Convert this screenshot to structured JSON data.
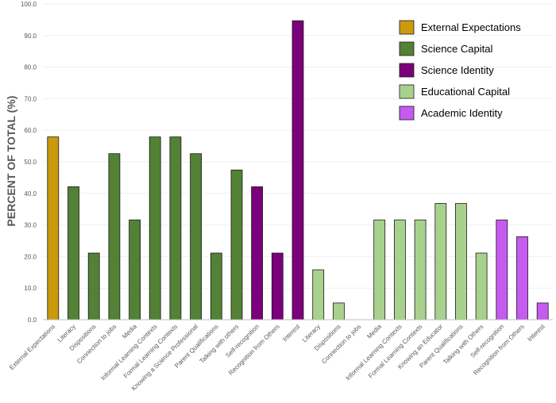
{
  "chart_data": {
    "type": "bar",
    "title": "",
    "xlabel": "",
    "ylabel": "PERCENT OF TOTAL (%)",
    "ylim": [
      0,
      100
    ],
    "yticks": [
      "0.0",
      "10.0",
      "20.0",
      "30.0",
      "40.0",
      "50.0",
      "60.0",
      "70.0",
      "80.0",
      "90.0",
      "100.0"
    ],
    "grid": true,
    "legend_position": "top-right",
    "legend": [
      {
        "name": "External Expectations",
        "color": "#c99a0e"
      },
      {
        "name": "Science Capital",
        "color": "#538135"
      },
      {
        "name": "Science Identity",
        "color": "#7b007b"
      },
      {
        "name": "Educational Capital",
        "color": "#a9d18e"
      },
      {
        "name": "Academic Identity",
        "color": "#c65bf0"
      }
    ],
    "bars": [
      {
        "category": "External Expectations",
        "series": "External Expectations",
        "value": 57.9
      },
      {
        "category": "Literacy",
        "series": "Science Capital",
        "value": 42.1
      },
      {
        "category": "Dispositions",
        "series": "Science Capital",
        "value": 21.1
      },
      {
        "category": "Connection to jobs",
        "series": "Science Capital",
        "value": 52.6
      },
      {
        "category": "Media",
        "series": "Science Capital",
        "value": 31.6
      },
      {
        "category": "Informal Learning Contexts",
        "series": "Science Capital",
        "value": 57.9
      },
      {
        "category": "Formal Learning Contexts",
        "series": "Science Capital",
        "value": 57.9
      },
      {
        "category": "Knowing a Science Professional",
        "series": "Science Capital",
        "value": 52.6
      },
      {
        "category": "Parent Qualifications",
        "series": "Science Capital",
        "value": 21.1
      },
      {
        "category": "Talking with others",
        "series": "Science Capital",
        "value": 47.4
      },
      {
        "category": "Self-recognition",
        "series": "Science Identity",
        "value": 42.1
      },
      {
        "category": "Recognition from Others",
        "series": "Science Identity",
        "value": 21.1
      },
      {
        "category": "Interest",
        "series": "Science Identity",
        "value": 94.7
      },
      {
        "category": "Literacy",
        "series": "Educational Capital",
        "value": 15.8
      },
      {
        "category": "Dispositions",
        "series": "Educational Capital",
        "value": 5.3
      },
      {
        "category": "Connection to jobs",
        "series": "Educational Capital",
        "value": 0
      },
      {
        "category": "Media",
        "series": "Educational Capital",
        "value": 31.6
      },
      {
        "category": "Informal Learning Contexts",
        "series": "Educational Capital",
        "value": 31.6
      },
      {
        "category": "Formal Learning Contexts",
        "series": "Educational Capital",
        "value": 31.6
      },
      {
        "category": "Knowing an Educator",
        "series": "Educational Capital",
        "value": 36.8
      },
      {
        "category": "Parent Qualifications",
        "series": "Educational Capital",
        "value": 36.8
      },
      {
        "category": "Talking with Others",
        "series": "Educational Capital",
        "value": 21.1
      },
      {
        "category": "Self-recognition",
        "series": "Academic Identity",
        "value": 31.6
      },
      {
        "category": "Recognition from Others",
        "series": "Academic Identity",
        "value": 26.3
      },
      {
        "category": "Interest",
        "series": "Academic Identity",
        "value": 5.3
      }
    ]
  }
}
